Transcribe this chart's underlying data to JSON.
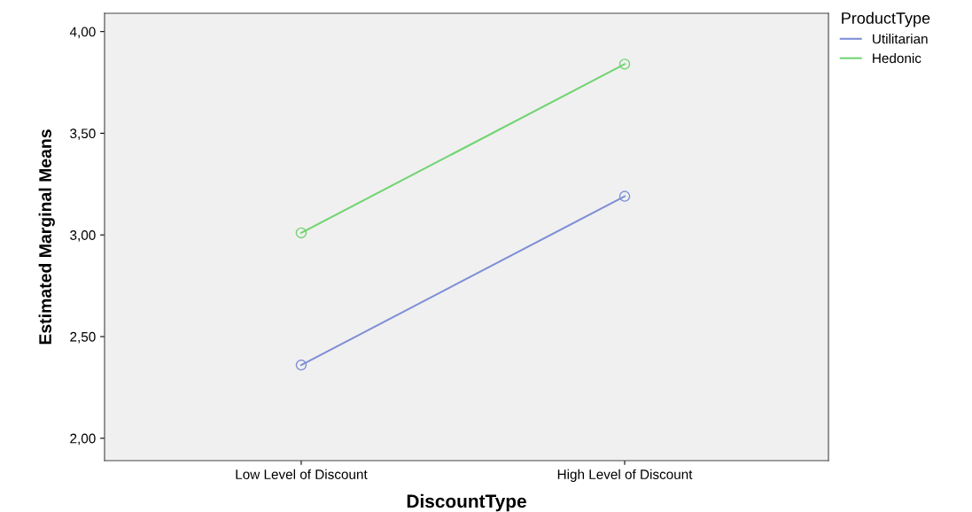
{
  "chart_data": {
    "type": "line",
    "xlabel": "DiscountType",
    "ylabel": "Estimated Marginal Means",
    "legend_title": "ProductType",
    "categories": [
      "Low Level of Discount",
      "High Level of Discount"
    ],
    "series": [
      {
        "name": "Utilitarian",
        "color": "#7f8fd6",
        "values": [
          2.36,
          3.19
        ]
      },
      {
        "name": "Hedonic",
        "color": "#72d472",
        "values": [
          3.01,
          3.84
        ]
      }
    ],
    "ylim": [
      1.89,
      4.09
    ],
    "yticks": [
      {
        "value": 2,
        "label": "2,00"
      },
      {
        "value": 2.5,
        "label": "2,50"
      },
      {
        "value": 3,
        "label": "3,00"
      },
      {
        "value": 3.5,
        "label": "3,50"
      },
      {
        "value": 4,
        "label": "4,00"
      }
    ],
    "grid": false,
    "legend": "right",
    "marker": "circle",
    "line_style": "solid"
  }
}
